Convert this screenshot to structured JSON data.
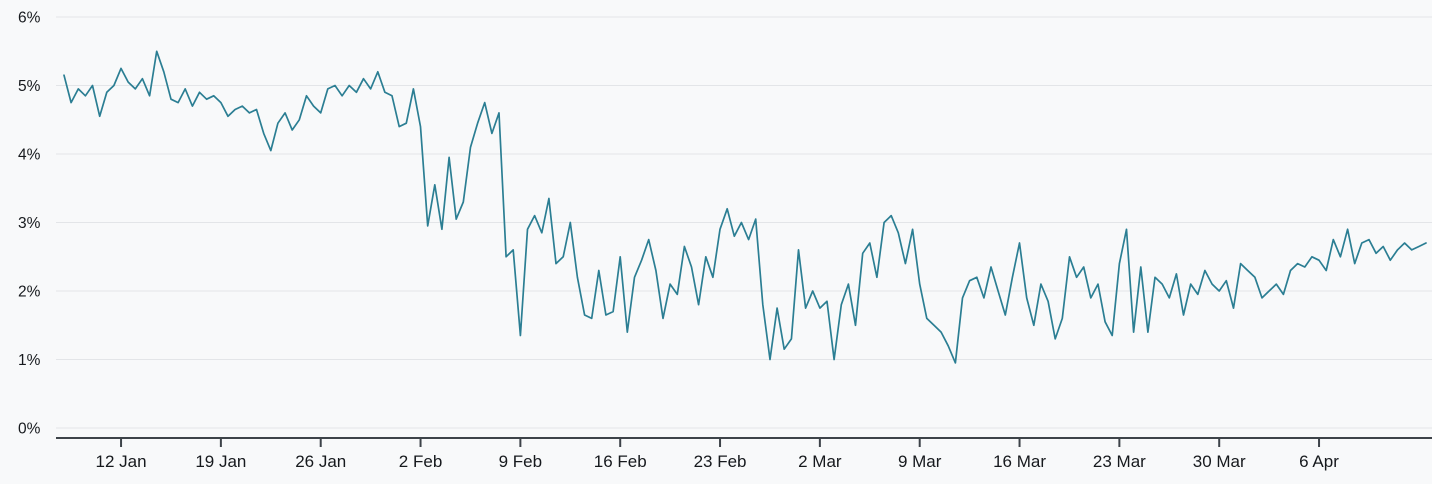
{
  "chart_data": {
    "type": "line",
    "title": "",
    "xlabel": "",
    "ylabel": "",
    "legend": "none",
    "grid": "horizontal",
    "x_step_days": 0.5,
    "x_tick_labels": [
      "12 Jan",
      "19 Jan",
      "26 Jan",
      "2 Feb",
      "9 Feb",
      "16 Feb",
      "23 Feb",
      "2 Mar",
      "9 Mar",
      "16 Mar",
      "23 Mar",
      "30 Mar",
      "6 Apr"
    ],
    "x_tick_days": [
      4,
      11,
      18,
      25,
      32,
      39,
      46,
      53,
      60,
      67,
      74,
      81,
      88
    ],
    "y_tick_labels": [
      "0%",
      "1%",
      "2%",
      "3%",
      "4%",
      "5%",
      "6%"
    ],
    "ylim": [
      0,
      6
    ],
    "colors": {
      "line": "#2b7e93",
      "grid": "#e3e5e8",
      "axis": "#3d4349",
      "label": "#16191d",
      "background": "#f8f9fa"
    },
    "values": [
      5.15,
      4.75,
      4.95,
      4.85,
      5.0,
      4.55,
      4.9,
      5.0,
      5.25,
      5.05,
      4.95,
      5.1,
      4.85,
      5.5,
      5.2,
      4.8,
      4.75,
      4.95,
      4.7,
      4.9,
      4.8,
      4.85,
      4.75,
      4.55,
      4.65,
      4.7,
      4.6,
      4.65,
      4.3,
      4.05,
      4.45,
      4.6,
      4.35,
      4.5,
      4.85,
      4.7,
      4.6,
      4.95,
      5.0,
      4.85,
      5.0,
      4.9,
      5.1,
      4.95,
      5.2,
      4.9,
      4.85,
      4.4,
      4.45,
      4.95,
      4.4,
      2.95,
      3.55,
      2.9,
      3.95,
      3.05,
      3.3,
      4.1,
      4.45,
      4.75,
      4.3,
      4.6,
      2.5,
      2.6,
      1.35,
      2.9,
      3.1,
      2.85,
      3.35,
      2.4,
      2.5,
      3.0,
      2.2,
      1.65,
      1.6,
      2.3,
      1.65,
      1.7,
      2.5,
      1.4,
      2.2,
      2.45,
      2.75,
      2.3,
      1.6,
      2.1,
      1.95,
      2.65,
      2.35,
      1.8,
      2.5,
      2.2,
      2.9,
      3.2,
      2.8,
      3.0,
      2.75,
      3.05,
      1.8,
      1.0,
      1.75,
      1.15,
      1.3,
      2.6,
      1.75,
      2.0,
      1.75,
      1.85,
      1.0,
      1.8,
      2.1,
      1.5,
      2.55,
      2.7,
      2.2,
      3.0,
      3.1,
      2.85,
      2.4,
      2.9,
      2.1,
      1.6,
      1.5,
      1.4,
      1.2,
      0.95,
      1.9,
      2.15,
      2.2,
      1.9,
      2.35,
      2.0,
      1.65,
      2.2,
      2.7,
      1.9,
      1.5,
      2.1,
      1.85,
      1.3,
      1.6,
      2.5,
      2.2,
      2.35,
      1.9,
      2.1,
      1.55,
      1.35,
      2.4,
      2.9,
      1.4,
      2.35,
      1.4,
      2.2,
      2.1,
      1.9,
      2.25,
      1.65,
      2.1,
      1.95,
      2.3,
      2.1,
      2.0,
      2.15,
      1.75,
      2.4,
      2.3,
      2.2,
      1.9,
      2.0,
      2.1,
      1.95,
      2.3,
      2.4,
      2.35,
      2.5,
      2.45,
      2.3,
      2.75,
      2.5,
      2.9,
      2.4,
      2.7,
      2.75,
      2.55,
      2.65,
      2.45,
      2.6,
      2.7,
      2.6,
      2.65,
      2.7
    ]
  }
}
